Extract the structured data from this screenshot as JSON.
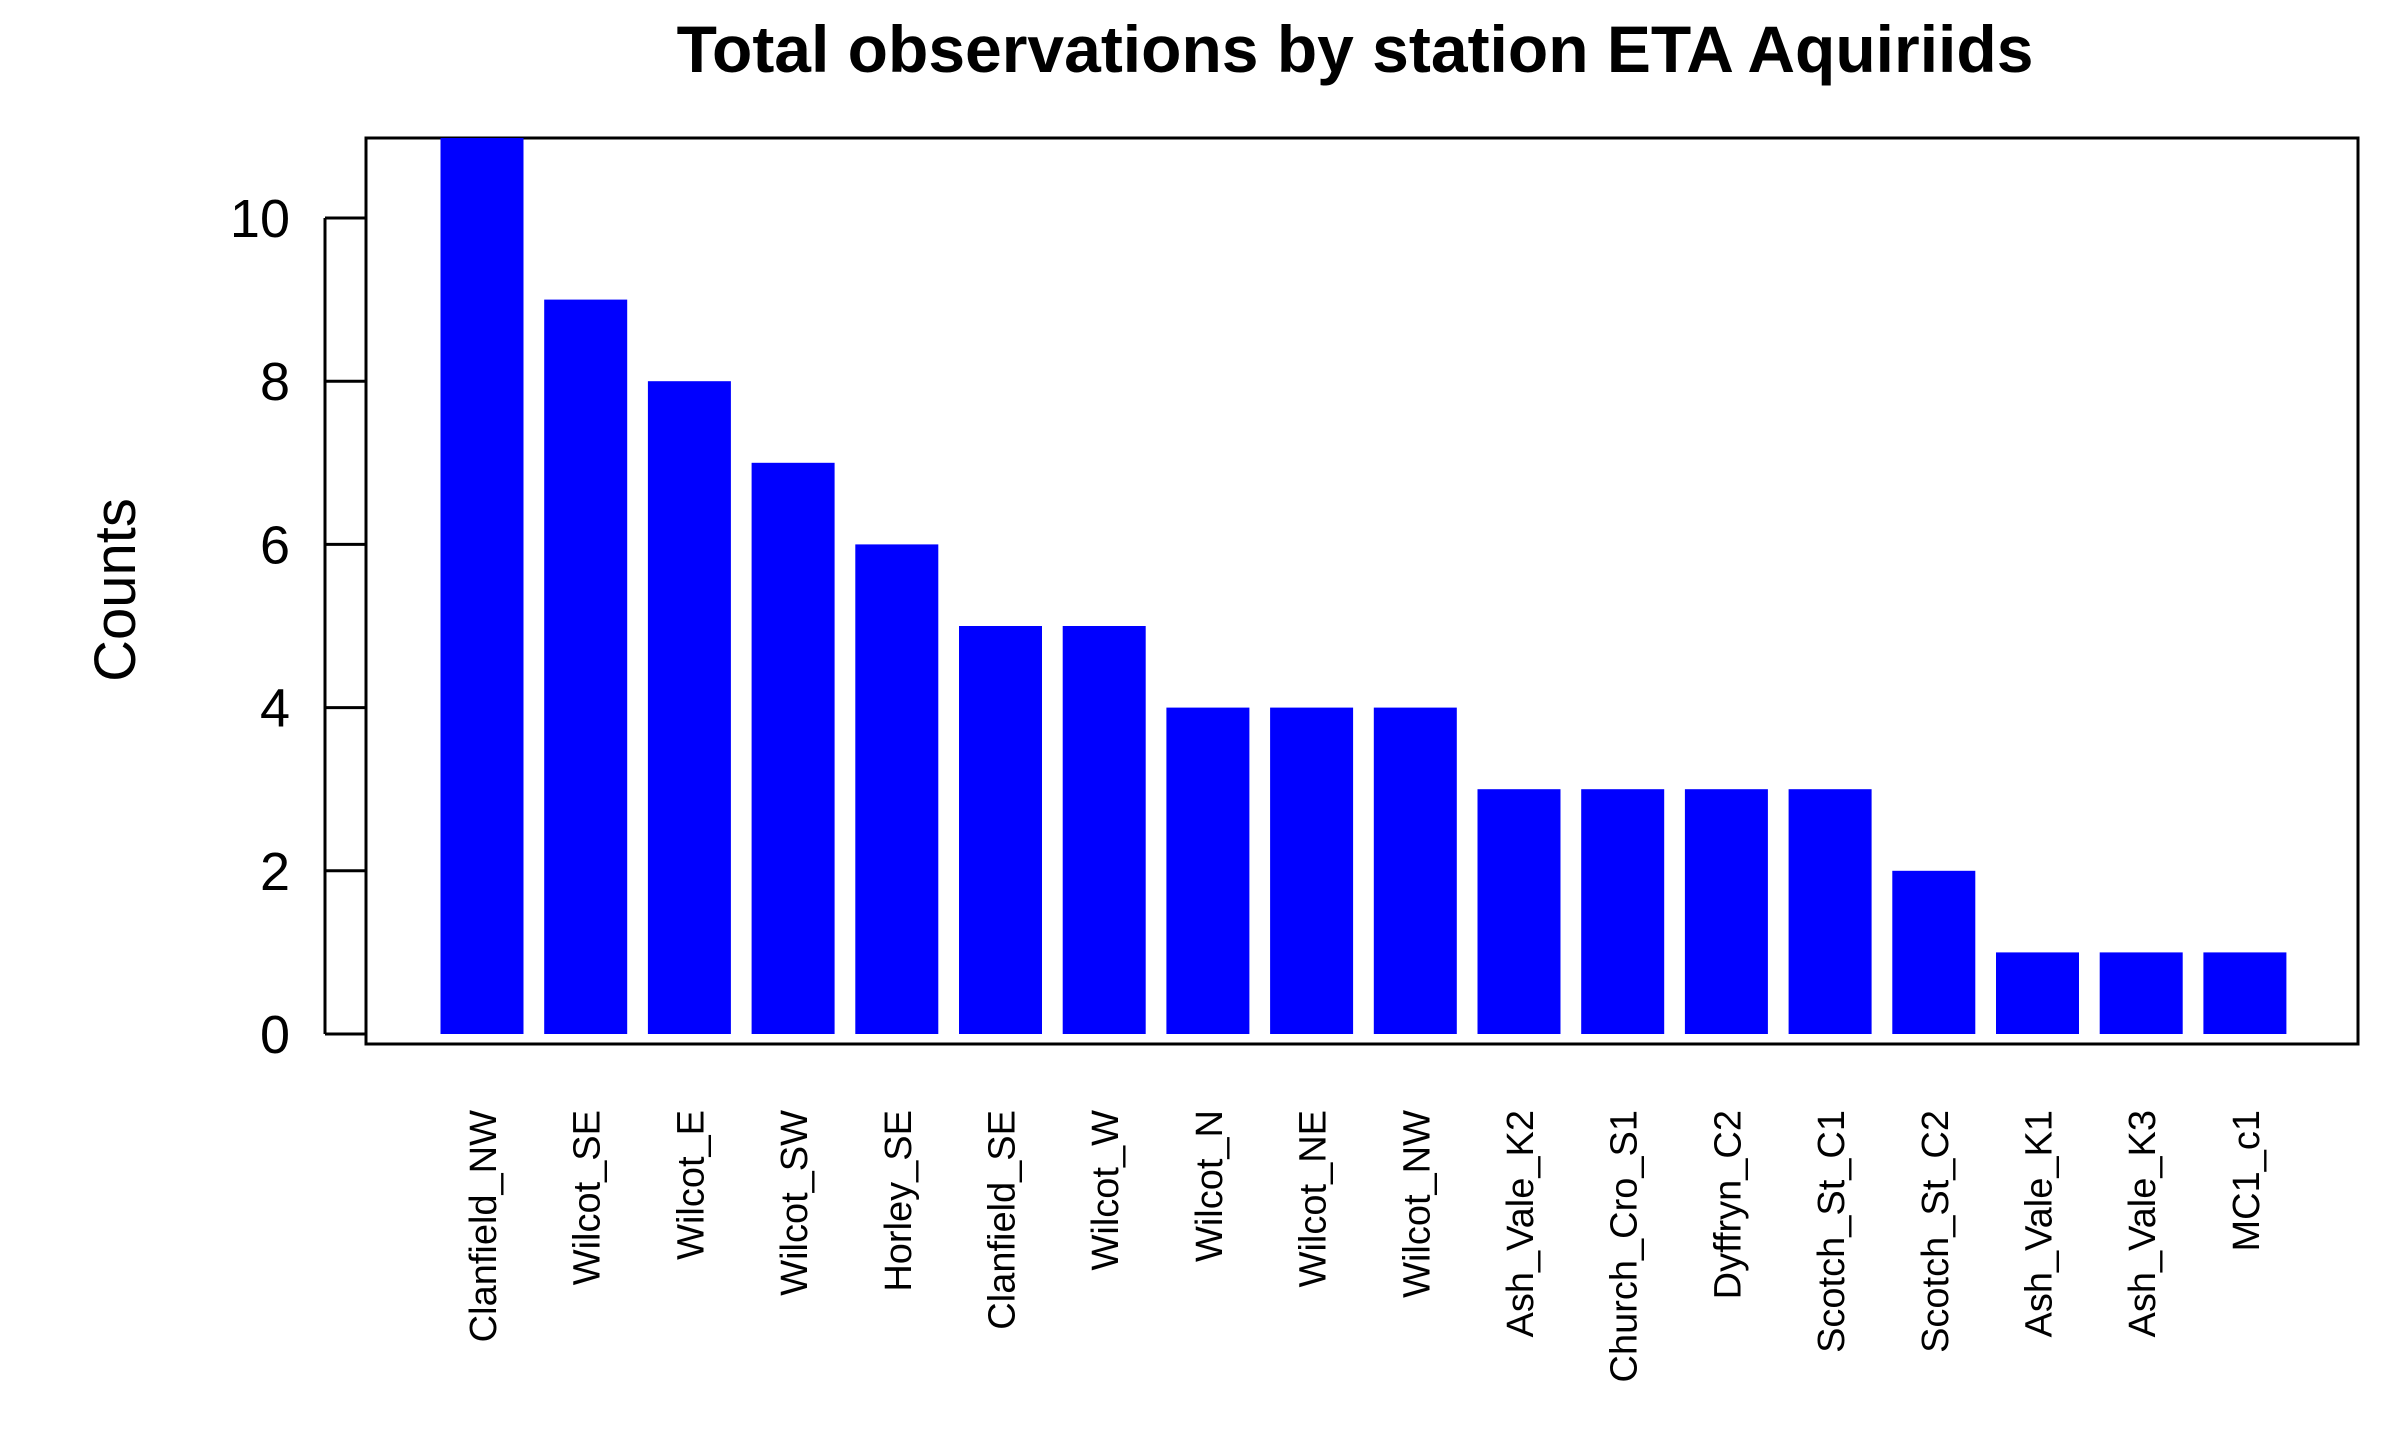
{
  "chart_data": {
    "type": "bar",
    "title": "Total observations by station ETA Aquiriids",
    "xlabel": "",
    "ylabel": "Counts",
    "categories": [
      "Clanfield_NW",
      "Wilcot_SE",
      "Wilcot_E",
      "Wilcot_SW",
      "Horley_SE",
      "Clanfield_SE",
      "Wilcot_W",
      "Wilcot_N",
      "Wilcot_NE",
      "Wilcot_NW",
      "Ash_Vale_K2",
      "Church_Cro_S1",
      "Dyffryn_C2",
      "Scotch_St_C1",
      "Scotch_St_C2",
      "Ash_Vale_K1",
      "Ash_Vale_K3",
      "MC1_c1"
    ],
    "values": [
      11,
      9,
      8,
      7,
      6,
      5,
      5,
      4,
      4,
      4,
      3,
      3,
      3,
      3,
      2,
      1,
      1,
      1
    ],
    "yticks": [
      0,
      2,
      4,
      6,
      8,
      10
    ],
    "ylim": [
      0,
      11
    ],
    "bar_color": "#0000ff",
    "grid": false,
    "legend": "none"
  }
}
